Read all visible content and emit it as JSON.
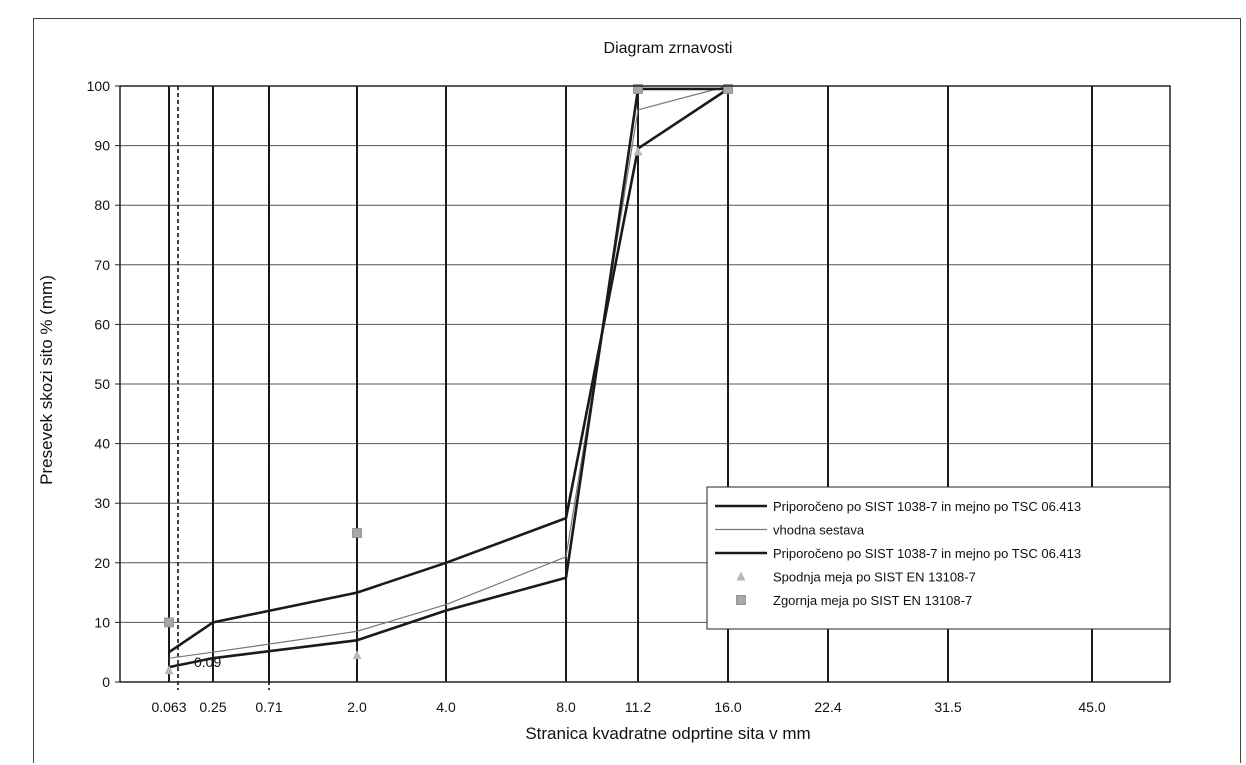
{
  "chart_data": {
    "type": "line",
    "title": "Diagram zrnavosti",
    "xlabel": "Stranica kvadratne odprtine sita v mm",
    "ylabel": "Presevek skozi sito % (mm)",
    "x_ticks": [
      "0.063",
      "0.25",
      "0.71",
      "2.0",
      "4.0",
      "8.0",
      "11.2",
      "16.0",
      "22.4",
      "31.5",
      "45.0"
    ],
    "ylim": [
      0,
      100
    ],
    "y_ticks": [
      0,
      10,
      20,
      30,
      40,
      50,
      60,
      70,
      80,
      90,
      100
    ],
    "grid": true,
    "dashed_reference_lines": [
      {
        "x": 0.09,
        "label": "0.09"
      },
      {
        "x": 0.71,
        "label": ""
      }
    ],
    "series": [
      {
        "name": "Priporočeno po SIST 1038-7 in mejno po TSC 06.413",
        "style": "thick",
        "color": "#1a1a1a",
        "x": [
          0.063,
          0.25,
          2.0,
          4.0,
          8.0,
          11.2,
          16.0
        ],
        "y": [
          5,
          10,
          15,
          20,
          27.5,
          89.5,
          99.5
        ]
      },
      {
        "name": "vhodna sestava",
        "style": "thin",
        "color": "#777777",
        "x": [
          0.063,
          0.25,
          2.0,
          4.0,
          8.0,
          11.2,
          16.0
        ],
        "y": [
          4,
          5,
          8.5,
          13,
          21,
          96,
          100
        ]
      },
      {
        "name": "Priporočeno po SIST 1038-7 in mejno po TSC 06.413",
        "style": "thick",
        "color": "#1a1a1a",
        "x": [
          0.063,
          0.25,
          2.0,
          4.0,
          8.0,
          11.2,
          16.0
        ],
        "y": [
          2.5,
          4,
          7,
          12,
          17.5,
          99.5,
          99.5
        ]
      },
      {
        "name": "Spodnja meja po SIST EN 13108-7",
        "type": "scatter",
        "marker": "triangle",
        "color": "#b8b8b8",
        "x": [
          0.063,
          2.0,
          11.2,
          16.0
        ],
        "y": [
          2,
          4.5,
          89,
          99.5
        ]
      },
      {
        "name": "Zgornja meja po SIST EN 13108-7",
        "type": "scatter",
        "marker": "square",
        "color": "#a8a8a8",
        "x": [
          0.063,
          2.0,
          11.2,
          16.0
        ],
        "y": [
          10,
          25,
          99.5,
          99.5
        ]
      }
    ],
    "legend_position": "lower-right",
    "legend": [
      {
        "label": "Priporočeno po SIST 1038-7 in mejno po TSC 06.413",
        "kind": "line-thick"
      },
      {
        "label": "vhodna sestava",
        "kind": "line-thin"
      },
      {
        "label": "Priporočeno po SIST 1038-7 in mejno po TSC 06.413",
        "kind": "line-thick"
      },
      {
        "label": "Spodnja meja po SIST EN 13108-7",
        "kind": "triangle"
      },
      {
        "label": "Zgornja meja po SIST EN 13108-7",
        "kind": "square"
      }
    ]
  }
}
